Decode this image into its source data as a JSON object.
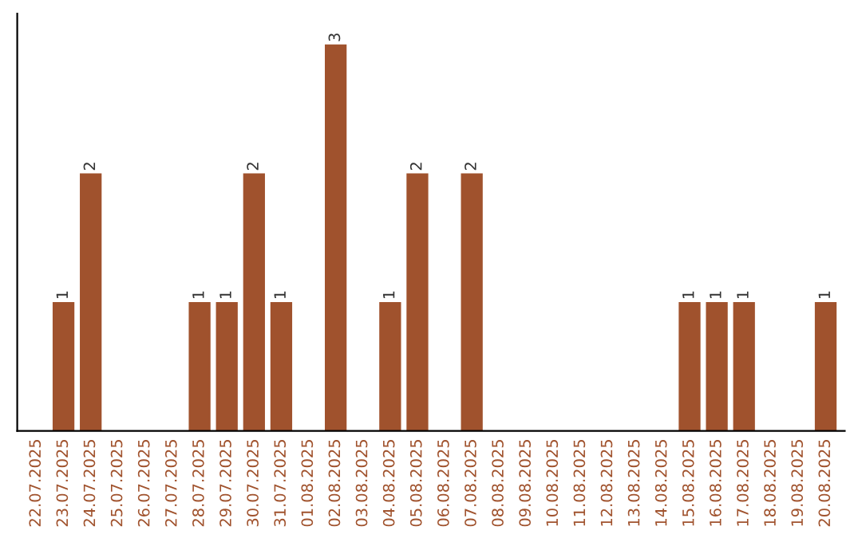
{
  "chart_data": {
    "type": "bar",
    "categories": [
      "22.07.2025",
      "23.07.2025",
      "24.07.2025",
      "25.07.2025",
      "26.07.2025",
      "27.07.2025",
      "28.07.2025",
      "29.07.2025",
      "30.07.2025",
      "31.07.2025",
      "01.08.2025",
      "02.08.2025",
      "03.08.2025",
      "04.08.2025",
      "05.08.2025",
      "06.08.2025",
      "07.08.2025",
      "08.08.2025",
      "09.08.2025",
      "10.08.2025",
      "11.08.2025",
      "12.08.2025",
      "13.08.2025",
      "14.08.2025",
      "15.08.2025",
      "16.08.2025",
      "17.08.2025",
      "18.08.2025",
      "19.08.2025",
      "20.08.2025"
    ],
    "values": [
      0,
      1,
      2,
      0,
      0,
      0,
      1,
      1,
      2,
      1,
      0,
      3,
      0,
      1,
      2,
      0,
      2,
      0,
      0,
      0,
      0,
      0,
      0,
      0,
      1,
      1,
      1,
      0,
      0,
      1
    ],
    "value_labels": [
      null,
      "1",
      "2",
      null,
      null,
      null,
      "1",
      "1",
      "2",
      "1",
      null,
      "3",
      null,
      "1",
      "2",
      null,
      "2",
      null,
      null,
      null,
      null,
      null,
      null,
      null,
      "1",
      "1",
      "1",
      null,
      null,
      "1"
    ],
    "color": "#a0522d",
    "tick_labels": "x",
    "grid": false
  }
}
